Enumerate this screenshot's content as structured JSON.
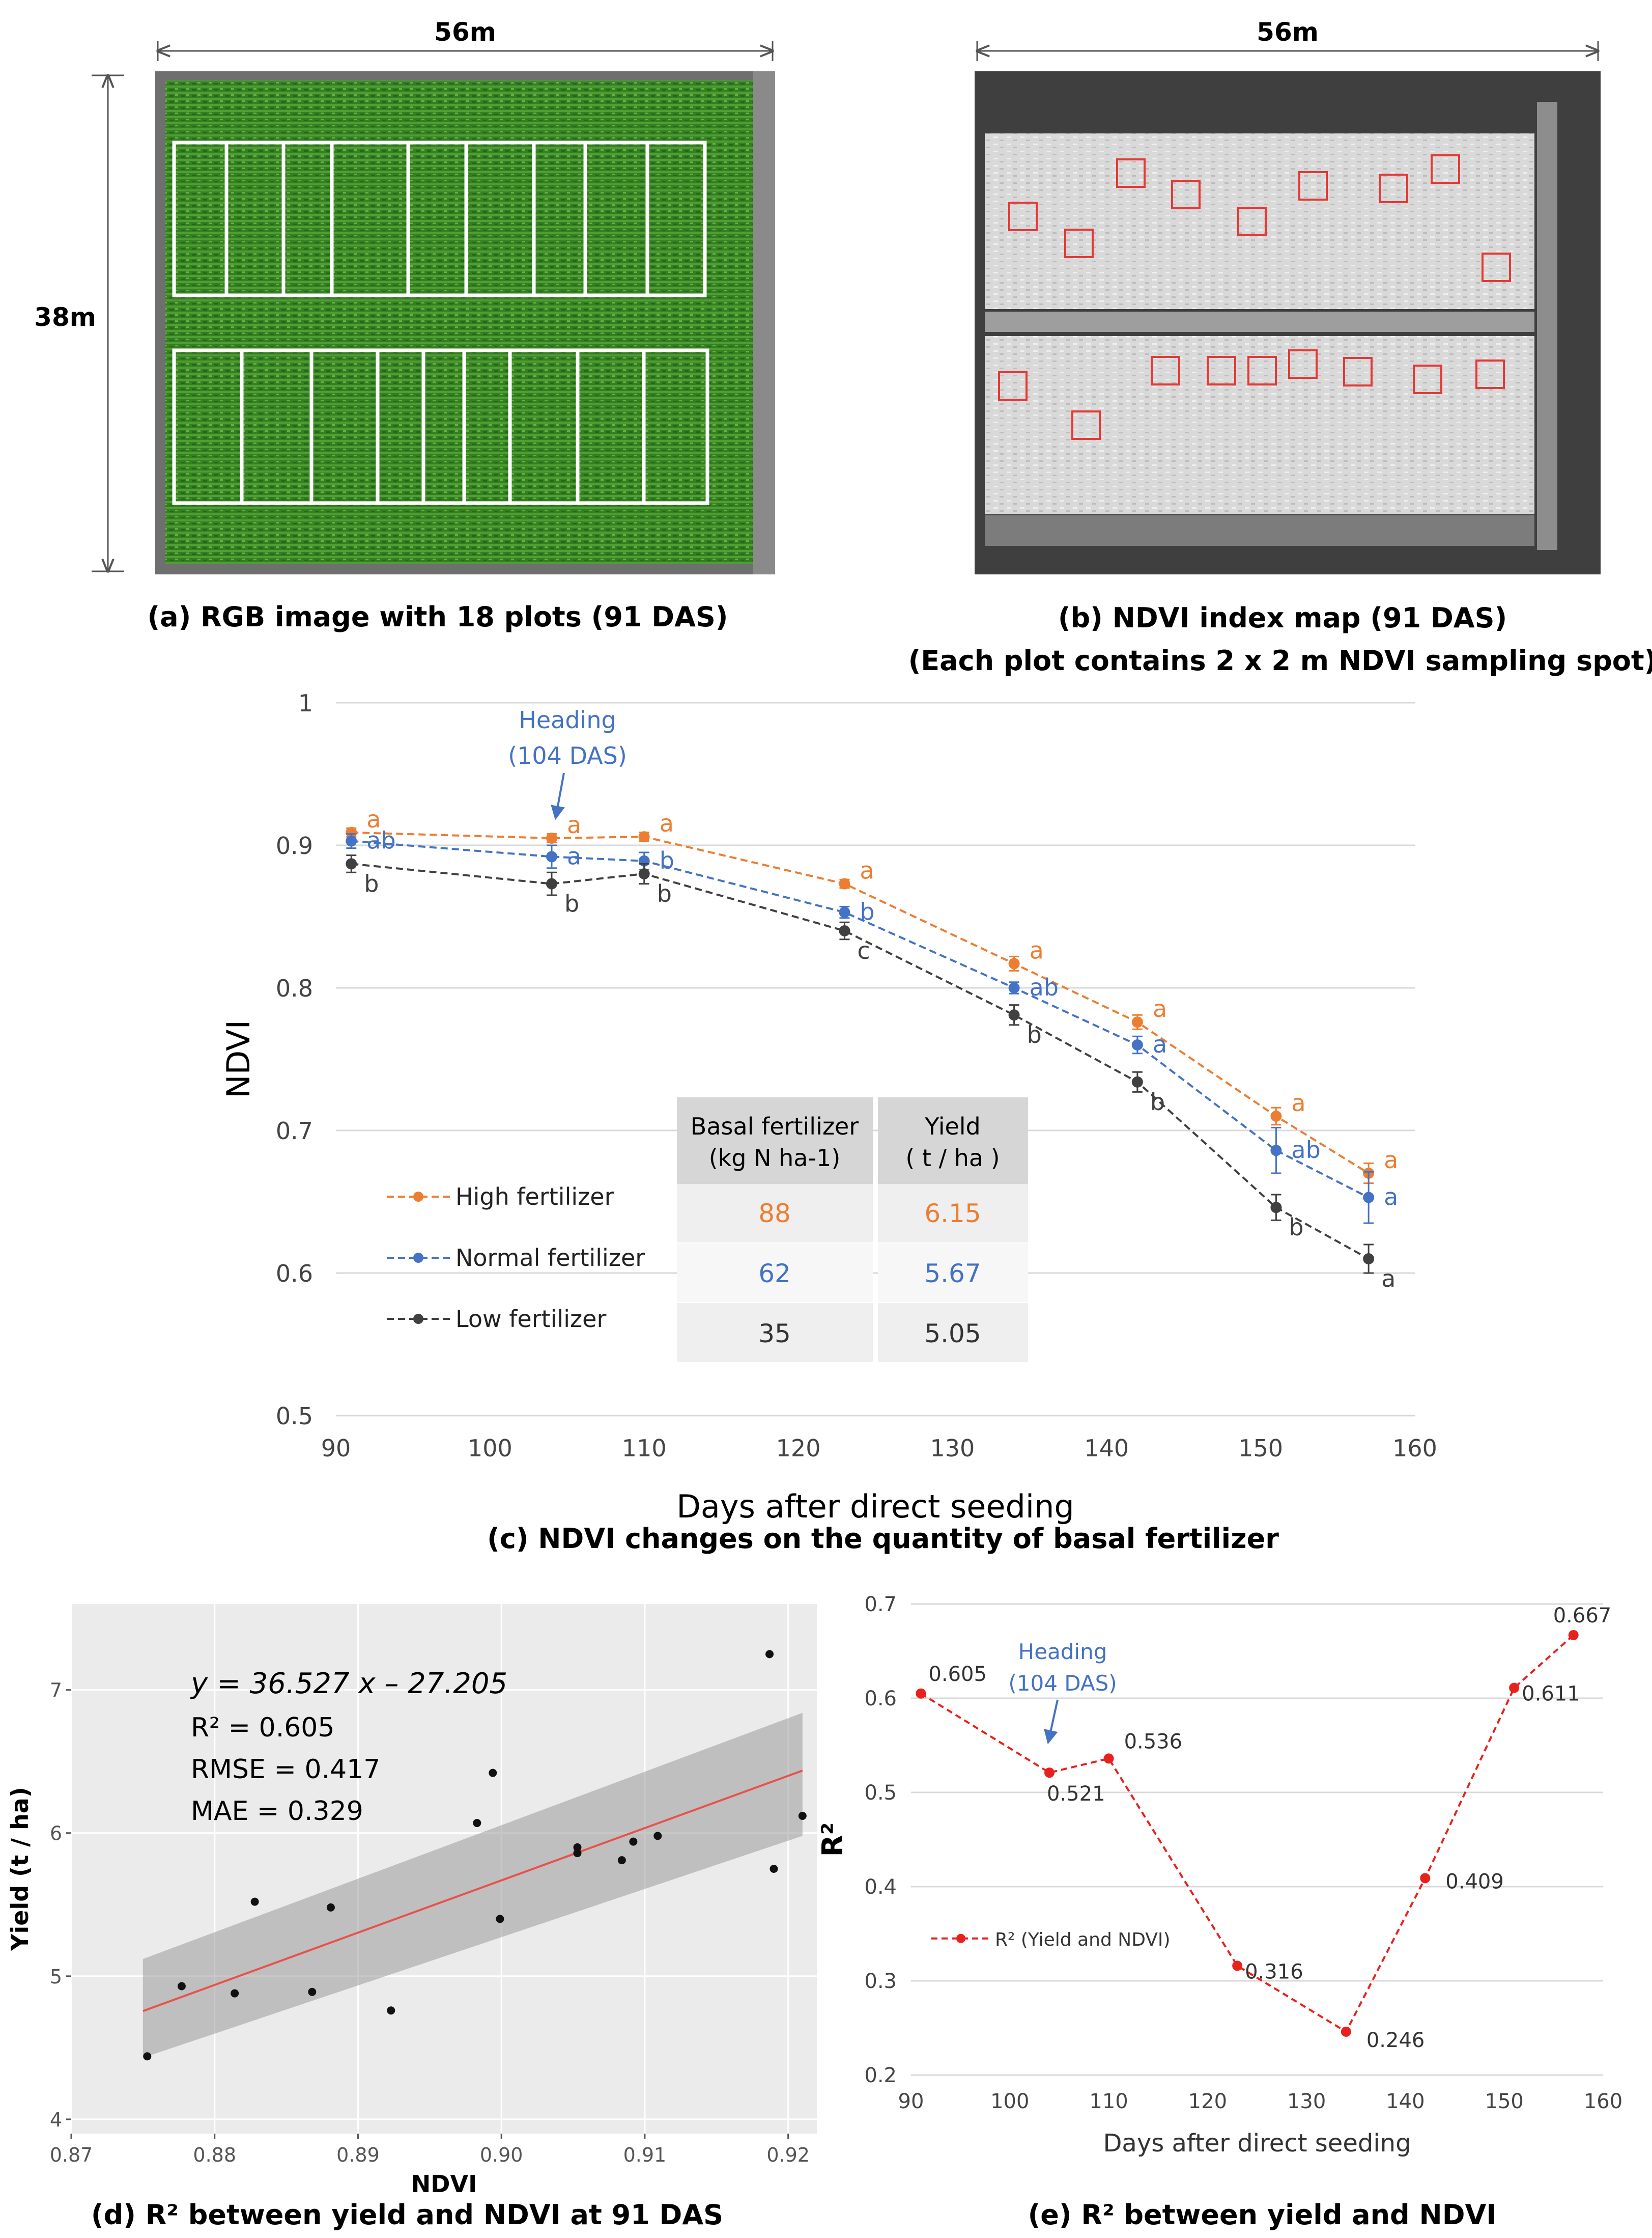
{
  "panel_a": {
    "caption": "(a) RGB image with 18 plots (91 DAS)",
    "width_label": "56m",
    "height_label": "38m",
    "colors": {
      "field": "#2f7d1e",
      "border": "#7a7a7a",
      "plot_outline": "#ffffff"
    }
  },
  "panel_b": {
    "caption": "(b) NDVI index map (91 DAS)",
    "caption_line2": "(Each plot contains 2 x 2 m NDVI sampling spot)",
    "width_label": "56m",
    "colors": {
      "field": "#d4d4d4",
      "border": "#555555",
      "spot": "#e53935"
    }
  },
  "panel_c": {
    "caption": "(c) NDVI changes on the quantity of basal fertilizer",
    "annotation": [
      "Heading",
      "(104 DAS)"
    ],
    "table": {
      "headers": [
        [
          "Basal fertilizer",
          "(kg N ha-1)"
        ],
        [
          "Yield",
          "( t / ha )"
        ]
      ],
      "rows": [
        [
          "88",
          "6.15"
        ],
        [
          "62",
          "5.67"
        ],
        [
          "35",
          "5.05"
        ]
      ]
    }
  },
  "panel_d": {
    "caption": "(d) R² between yield and NDVI at 91 DAS",
    "equation": [
      "y = 36.527 x – 27.205",
      "R² = 0.605",
      "RMSE = 0.417",
      "MAE = 0.329"
    ]
  },
  "panel_e": {
    "caption": "(e) R² between yield and NDVI",
    "annotation": [
      "Heading",
      "(104 DAS)"
    ]
  },
  "chart_data": [
    {
      "id": "c",
      "type": "line",
      "xlabel": "Days after direct seeding",
      "ylabel": "NDVI",
      "xlim": [
        90,
        160
      ],
      "ylim": [
        0.5,
        1.0
      ],
      "xticks": [
        90,
        100,
        110,
        120,
        130,
        140,
        150,
        160
      ],
      "yticks": [
        0.5,
        0.6,
        0.7,
        0.8,
        0.9,
        1.0
      ],
      "grid": "horizontal",
      "legend": "bottom-left",
      "x": [
        91,
        104,
        110,
        123,
        134,
        142,
        151,
        157
      ],
      "series": [
        {
          "name": "High fertilizer",
          "color": "#ED7D31",
          "values": [
            0.909,
            0.905,
            0.906,
            0.873,
            0.817,
            0.776,
            0.71,
            0.67
          ],
          "err": [
            0.003,
            0.003,
            0.003,
            0.003,
            0.005,
            0.005,
            0.006,
            0.007
          ],
          "labels": [
            "a",
            "a",
            "a",
            "a",
            "a",
            "a",
            "a",
            "a"
          ]
        },
        {
          "name": "Normal fertilizer",
          "color": "#4472C4",
          "values": [
            0.903,
            0.892,
            0.889,
            0.853,
            0.8,
            0.76,
            0.686,
            0.653
          ],
          "err": [
            0.005,
            0.008,
            0.006,
            0.004,
            0.004,
            0.006,
            0.016,
            0.018
          ],
          "labels": [
            "ab",
            "a",
            "b",
            "b",
            "ab",
            "a",
            "ab",
            "a"
          ]
        },
        {
          "name": "Low fertilizer",
          "color": "#404040",
          "values": [
            0.887,
            0.873,
            0.88,
            0.84,
            0.781,
            0.734,
            0.646,
            0.61
          ],
          "err": [
            0.006,
            0.008,
            0.007,
            0.006,
            0.007,
            0.007,
            0.009,
            0.01
          ],
          "labels": [
            "b",
            "b",
            "b",
            "c",
            "b",
            "b",
            "b",
            "a"
          ]
        }
      ]
    },
    {
      "id": "d",
      "type": "scatter",
      "xlabel": "NDVI",
      "ylabel": "Yield (t / ha)",
      "xlim": [
        0.87,
        0.922
      ],
      "ylim": [
        3.9,
        7.6
      ],
      "xticks": [
        0.87,
        0.88,
        0.89,
        0.9,
        0.91,
        0.92
      ],
      "xtick_labels": [
        "0.87",
        "0.88",
        "0.89",
        "0.90",
        "0.91",
        "0.92"
      ],
      "yticks": [
        4,
        5,
        6,
        7
      ],
      "points": [
        [
          0.8753,
          4.44
        ],
        [
          0.8777,
          4.93
        ],
        [
          0.8814,
          4.88
        ],
        [
          0.8828,
          5.52
        ],
        [
          0.8868,
          4.89
        ],
        [
          0.8881,
          5.48
        ],
        [
          0.8923,
          4.76
        ],
        [
          0.8983,
          6.07
        ],
        [
          0.8994,
          6.42
        ],
        [
          0.8999,
          5.4
        ],
        [
          0.9053,
          5.86
        ],
        [
          0.9053,
          5.9
        ],
        [
          0.9084,
          5.81
        ],
        [
          0.9092,
          5.94
        ],
        [
          0.9109,
          5.98
        ],
        [
          0.9187,
          7.25
        ],
        [
          0.919,
          5.75
        ],
        [
          0.921,
          6.12
        ]
      ],
      "fit": {
        "slope": 36.527,
        "intercept": -27.205,
        "color": "#e8524a"
      },
      "band": {
        "lower_at_min": 4.43,
        "upper_at_min": 5.12,
        "lower_at_max": 5.98,
        "upper_at_max": 6.84
      }
    },
    {
      "id": "e",
      "type": "line",
      "xlabel": "Days after direct seeding",
      "ylabel": "R²",
      "xlim": [
        90,
        160
      ],
      "ylim": [
        0.2,
        0.7
      ],
      "xticks": [
        90,
        100,
        110,
        120,
        130,
        140,
        150,
        160
      ],
      "yticks": [
        0.2,
        0.3,
        0.4,
        0.5,
        0.6,
        0.7
      ],
      "grid": "horizontal",
      "legend": "middle-left",
      "series": [
        {
          "name": "R² (Yield and NDVI)",
          "color": "#e8211d",
          "x": [
            91,
            104,
            110,
            123,
            134,
            142,
            151,
            157
          ],
          "values": [
            0.605,
            0.521,
            0.536,
            0.316,
            0.246,
            0.409,
            0.611,
            0.667
          ],
          "labels": [
            "0.605",
            "0.521",
            "0.536",
            "0.316",
            "0.246",
            "0.409",
            "0.611",
            "0.667"
          ]
        }
      ]
    }
  ]
}
